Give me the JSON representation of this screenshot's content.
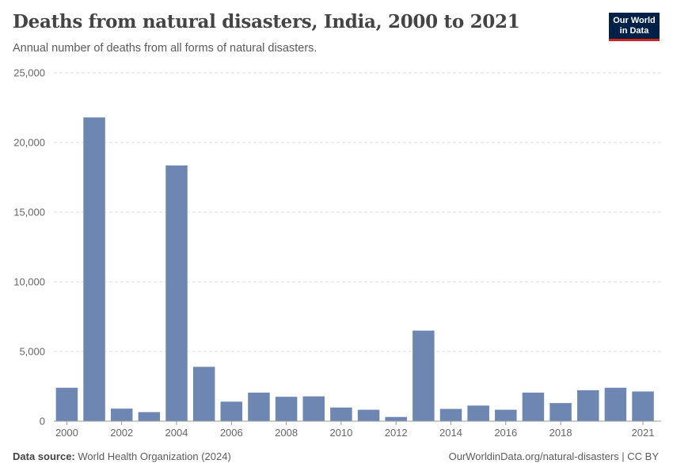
{
  "header": {
    "title": "Deaths from natural disasters, India, 2000 to 2021",
    "subtitle": "Annual number of deaths from all forms of natural disasters."
  },
  "logo": {
    "line1": "Our World",
    "line2": "in Data"
  },
  "footer": {
    "source_label": "Data source:",
    "source_text": "World Health Organization (2024)",
    "credit": "OurWorldinData.org/natural-disasters | CC BY"
  },
  "colors": {
    "bar": "#6d87b2",
    "grid": "#dddddd",
    "axis": "#999999",
    "brand": "#002147",
    "brand_accent": "#ce261e"
  },
  "chart_data": {
    "type": "bar",
    "title": "Deaths from natural disasters, India, 2000 to 2021",
    "xlabel": "",
    "ylabel": "",
    "categories": [
      "2000",
      "2001",
      "2002",
      "2003",
      "2004",
      "2005",
      "2006",
      "2007",
      "2008",
      "2009",
      "2010",
      "2011",
      "2012",
      "2013",
      "2014",
      "2015",
      "2016",
      "2017",
      "2018",
      "2019",
      "2020",
      "2021"
    ],
    "values": [
      2400,
      21800,
      900,
      650,
      18350,
      3900,
      1400,
      2050,
      1750,
      1780,
      980,
      820,
      300,
      6500,
      880,
      1120,
      820,
      2050,
      1300,
      2220,
      2400,
      2130
    ],
    "ylim": [
      0,
      25000
    ],
    "yticks": [
      0,
      5000,
      10000,
      15000,
      20000,
      25000
    ],
    "ytick_labels": [
      "0",
      "5,000",
      "10,000",
      "15,000",
      "20,000",
      "25,000"
    ],
    "xtick_labels": [
      "2000",
      "2002",
      "2004",
      "2006",
      "2008",
      "2010",
      "2012",
      "2014",
      "2016",
      "2018",
      "2021"
    ],
    "grid": true,
    "legend": "none"
  }
}
